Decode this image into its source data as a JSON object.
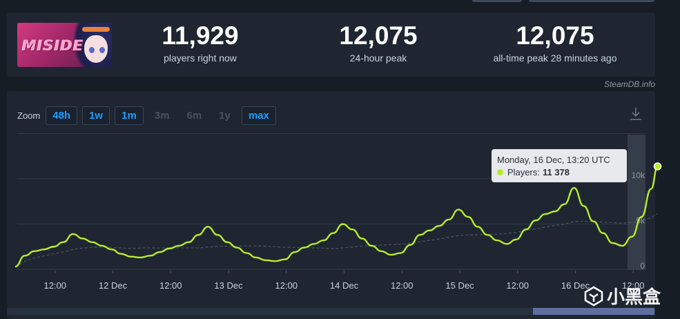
{
  "game": {
    "thumbnail_title": "MISIDE"
  },
  "stats": [
    {
      "value": "11,929",
      "label": "players right now"
    },
    {
      "value": "12,075",
      "label": "24-hour peak"
    },
    {
      "value": "12,075",
      "label": "all-time peak 28 minutes ago"
    }
  ],
  "credit": "SteamDB.info",
  "zoom": {
    "label": "Zoom",
    "buttons": [
      {
        "label": "48h",
        "enabled": true
      },
      {
        "label": "1w",
        "enabled": true
      },
      {
        "label": "1m",
        "enabled": true
      },
      {
        "label": "3m",
        "enabled": false
      },
      {
        "label": "6m",
        "enabled": false
      },
      {
        "label": "1y",
        "enabled": false
      },
      {
        "label": "max",
        "enabled": true
      }
    ]
  },
  "tooltip": {
    "title": "Monday, 16 Dec, 13:20 UTC",
    "series_label": "Players:",
    "value": "11 378"
  },
  "watermark": "小黑盒",
  "colors": {
    "line": "#b8ec2b",
    "accent": "#1a9fff",
    "panel": "#1f2631",
    "background": "#171d25"
  },
  "chart_data": {
    "type": "line",
    "x_tick_labels": [
      "12:00",
      "12 Dec",
      "12:00",
      "13 Dec",
      "12:00",
      "14 Dec",
      "12:00",
      "15 Dec",
      "12:00",
      "16 Dec",
      "12:00"
    ],
    "y_tick_labels": [
      "0",
      "5k",
      "10k"
    ],
    "ylim": [
      0,
      12000
    ],
    "grid": true,
    "series": [
      {
        "name": "Players",
        "x": [
          "11 Dec 00:00",
          "11 Dec 02:00",
          "11 Dec 04:00",
          "11 Dec 06:00",
          "11 Dec 08:00",
          "11 Dec 10:00",
          "11 Dec 12:00",
          "11 Dec 14:00",
          "11 Dec 16:00",
          "11 Dec 18:00",
          "11 Dec 20:00",
          "11 Dec 22:00",
          "12 Dec 00:00",
          "12 Dec 02:00",
          "12 Dec 04:00",
          "12 Dec 06:00",
          "12 Dec 08:00",
          "12 Dec 10:00",
          "12 Dec 12:00",
          "12 Dec 14:00",
          "12 Dec 16:00",
          "12 Dec 18:00",
          "12 Dec 20:00",
          "12 Dec 22:00",
          "13 Dec 00:00",
          "13 Dec 02:00",
          "13 Dec 04:00",
          "13 Dec 06:00",
          "13 Dec 08:00",
          "13 Dec 10:00",
          "13 Dec 12:00",
          "13 Dec 14:00",
          "13 Dec 16:00",
          "13 Dec 18:00",
          "13 Dec 20:00",
          "13 Dec 22:00",
          "14 Dec 00:00",
          "14 Dec 02:00",
          "14 Dec 04:00",
          "14 Dec 06:00",
          "14 Dec 08:00",
          "14 Dec 10:00",
          "14 Dec 12:00",
          "14 Dec 14:00",
          "14 Dec 16:00",
          "14 Dec 18:00",
          "14 Dec 20:00",
          "14 Dec 22:00",
          "15 Dec 00:00",
          "15 Dec 02:00",
          "15 Dec 04:00",
          "15 Dec 06:00",
          "15 Dec 08:00",
          "15 Dec 10:00",
          "15 Dec 12:00",
          "15 Dec 14:00",
          "15 Dec 16:00",
          "15 Dec 18:00",
          "15 Dec 20:00",
          "15 Dec 22:00",
          "16 Dec 00:00",
          "16 Dec 02:00",
          "16 Dec 04:00",
          "16 Dec 06:00",
          "16 Dec 08:00",
          "16 Dec 10:00",
          "16 Dec 12:00",
          "16 Dec 13:20"
        ],
        "y": [
          300,
          1500,
          2000,
          2200,
          2500,
          3000,
          3900,
          3400,
          3000,
          2600,
          2200,
          1700,
          1400,
          1300,
          1500,
          1900,
          2300,
          2600,
          3000,
          3800,
          4700,
          3800,
          3000,
          2400,
          1800,
          1300,
          1000,
          900,
          1100,
          1900,
          2400,
          2800,
          3200,
          4000,
          5000,
          4400,
          3400,
          2600,
          2000,
          1600,
          1800,
          2700,
          3800,
          4300,
          4800,
          5500,
          6600,
          5800,
          4700,
          3800,
          3200,
          2800,
          3300,
          4400,
          5400,
          6100,
          6400,
          7200,
          9000,
          7000,
          5300,
          4000,
          2900,
          2600,
          3600,
          5800,
          8900,
          11378
        ]
      }
    ]
  }
}
